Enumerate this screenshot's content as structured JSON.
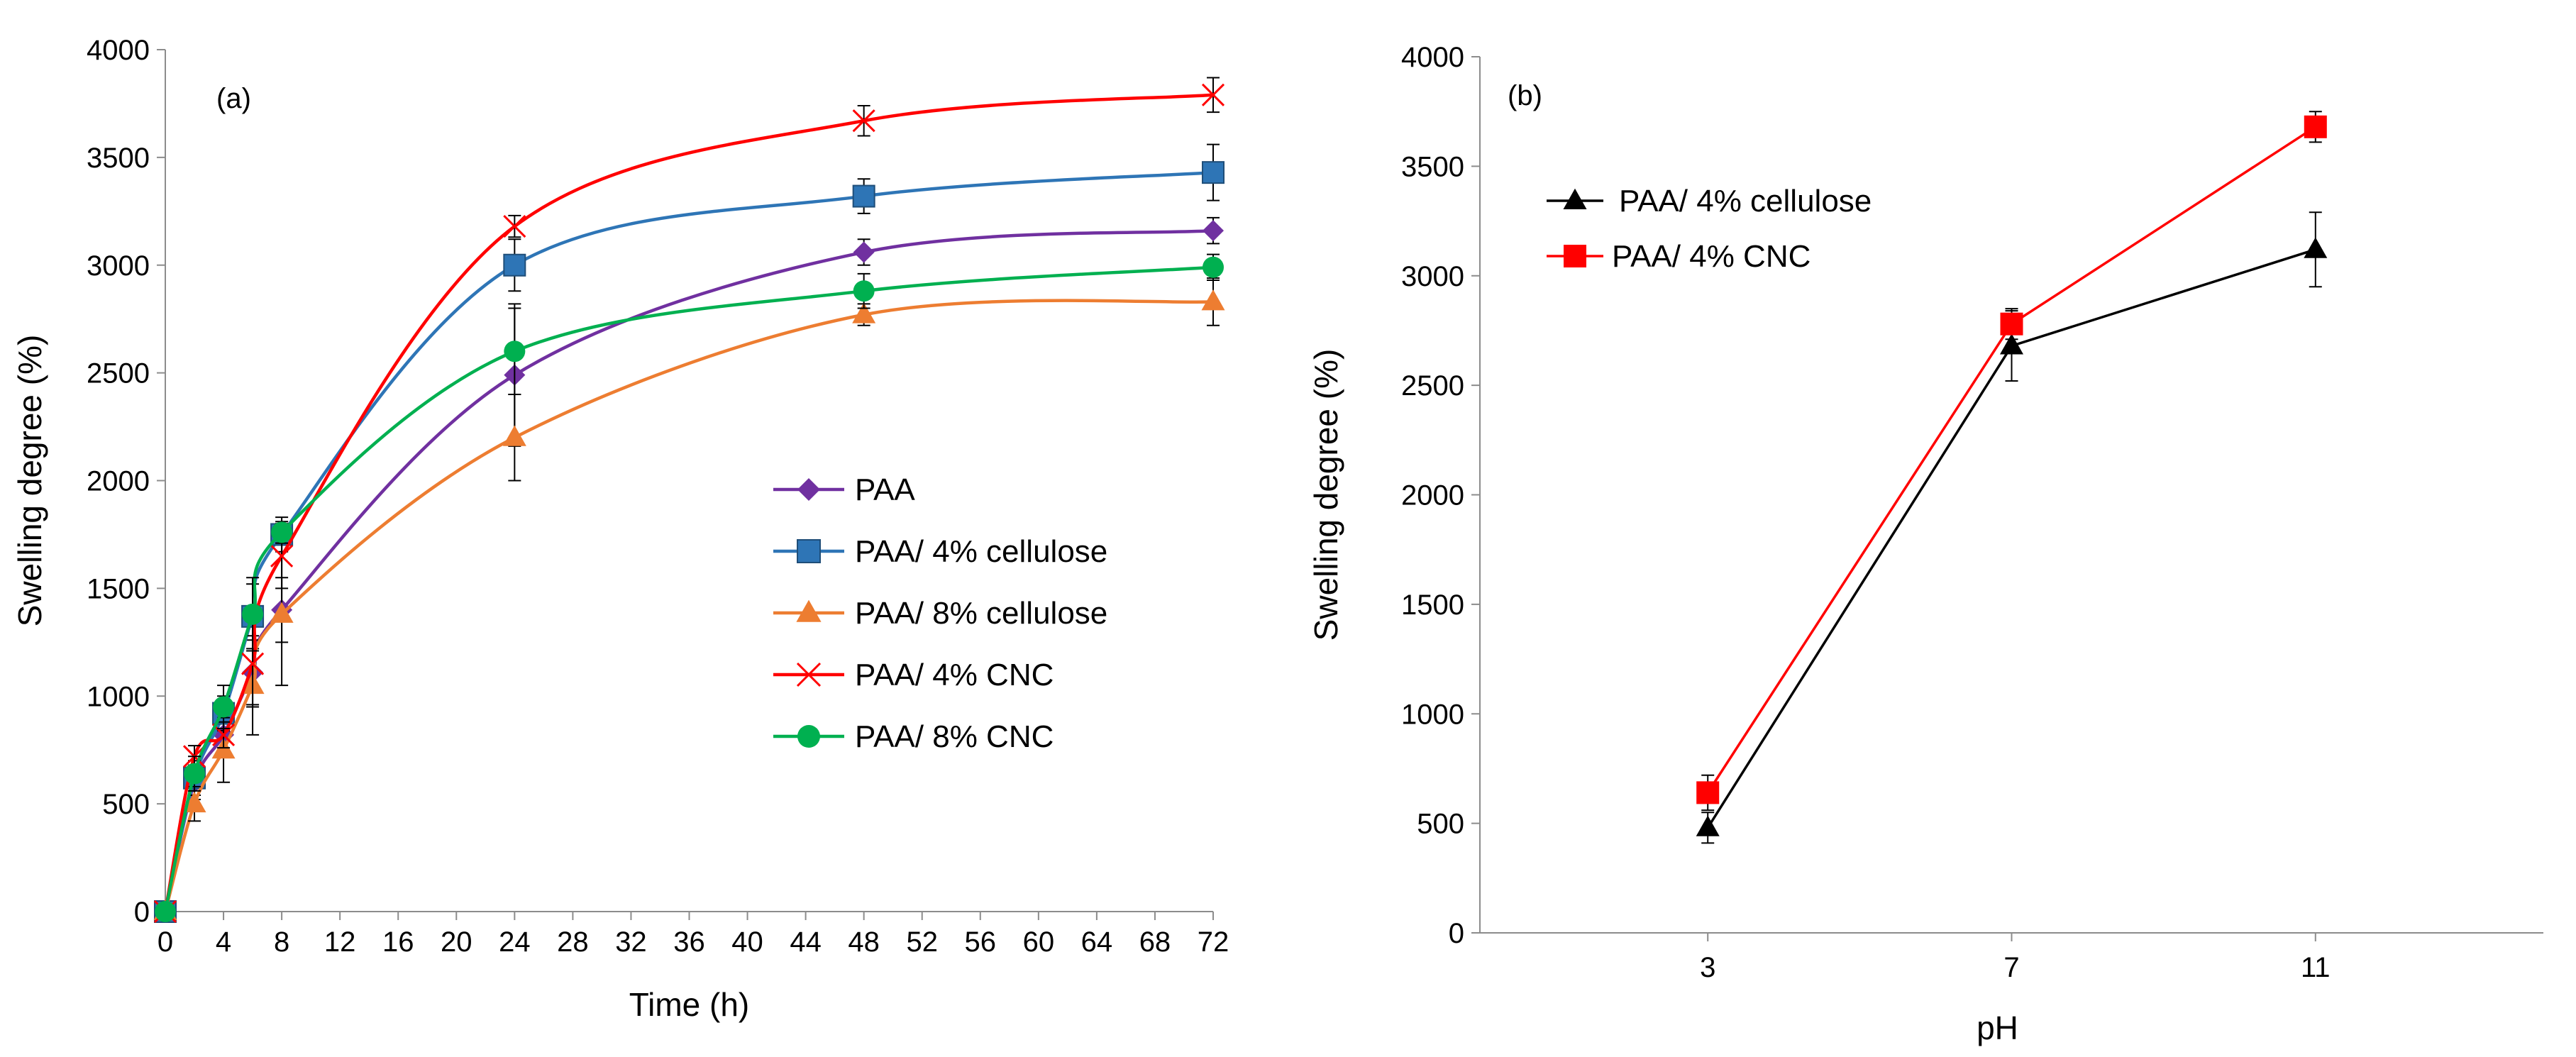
{
  "chart_data": [
    {
      "type": "line",
      "panel": "(a)",
      "title": "",
      "xlabel": "Time (h)",
      "ylabel": "Swelling degree (%)",
      "xlim": [
        0,
        72
      ],
      "ylim": [
        0,
        4000
      ],
      "xticks": [
        0,
        4,
        8,
        12,
        16,
        20,
        24,
        28,
        32,
        36,
        40,
        44,
        48,
        52,
        56,
        60,
        64,
        68,
        72
      ],
      "yticks": [
        0,
        500,
        1000,
        1500,
        2000,
        2500,
        3000,
        3500,
        4000
      ],
      "grid": false,
      "legend_position": "center-right",
      "x": [
        0,
        2,
        4,
        6,
        8,
        24,
        48,
        72
      ],
      "series": [
        {
          "name": "PAA",
          "color": "#7030a0",
          "marker": "diamond",
          "values": [
            0,
            600,
            820,
            1110,
            1400,
            2490,
            3060,
            3160
          ],
          "errors": [
            0,
            80,
            80,
            150,
            150,
            330,
            60,
            60
          ]
        },
        {
          "name": "PAA/ 4% cellulose",
          "color": "#2e75b6",
          "marker": "square",
          "values": [
            0,
            620,
            920,
            1370,
            1750,
            3000,
            3320,
            3430
          ],
          "errors": [
            0,
            80,
            80,
            150,
            80,
            120,
            80,
            130
          ]
        },
        {
          "name": "PAA/ 8% cellulose",
          "color": "#ed7d31",
          "marker": "triangle",
          "values": [
            0,
            500,
            750,
            1050,
            1380,
            2200,
            2770,
            2830
          ],
          "errors": [
            0,
            80,
            150,
            230,
            330,
            200,
            50,
            110
          ]
        },
        {
          "name": "PAA/ 4% CNC",
          "color": "#ff0000",
          "marker": "x",
          "values": [
            0,
            720,
            820,
            1150,
            1650,
            3180,
            3670,
            3790
          ],
          "errors": [
            0,
            50,
            60,
            200,
            150,
            50,
            70,
            80
          ]
        },
        {
          "name": "PAA/ 8% CNC",
          "color": "#00b050",
          "marker": "circle",
          "values": [
            0,
            640,
            950,
            1380,
            1760,
            2600,
            2880,
            2990
          ],
          "errors": [
            0,
            80,
            100,
            170,
            50,
            200,
            80,
            60
          ]
        }
      ]
    },
    {
      "type": "line",
      "panel": "(b)",
      "title": "",
      "xlabel": "pH",
      "ylabel": "Swelling degree (%)",
      "ylim": [
        0,
        4000
      ],
      "yticks": [
        0,
        500,
        1000,
        1500,
        2000,
        2500,
        3000,
        3500,
        4000
      ],
      "categories": [
        "3",
        "7",
        "11"
      ],
      "grid": false,
      "legend_position": "top-left",
      "series": [
        {
          "name": "PAA/ 4% cellulose",
          "color": "#000000",
          "marker": "triangle",
          "values": [
            480,
            2680,
            3120
          ],
          "errors": [
            70,
            160,
            170
          ]
        },
        {
          "name": "PAA/ 4% CNC",
          "color": "#ff0000",
          "marker": "square",
          "values": [
            640,
            2780,
            3680
          ],
          "errors": [
            80,
            70,
            70
          ]
        }
      ]
    }
  ]
}
